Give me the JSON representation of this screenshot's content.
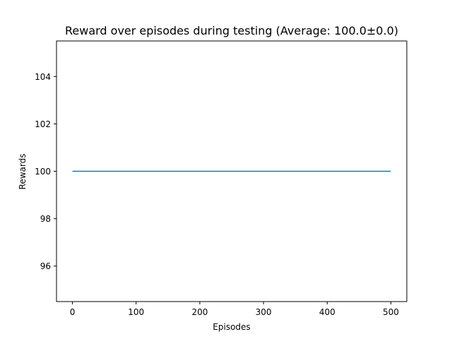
{
  "chart_data": {
    "type": "line",
    "title": "Reward over episodes during testing (Average: 100.0±0.0)",
    "xlabel": "Episodes",
    "ylabel": "Rewards",
    "xlim": [
      -25,
      525
    ],
    "ylim": [
      94.5,
      105.5
    ],
    "xticks": [
      0,
      100,
      200,
      300,
      400,
      500
    ],
    "yticks": [
      96,
      98,
      100,
      102,
      104
    ],
    "grid": false,
    "series": [
      {
        "color": "#1f77b4",
        "x": [
          0,
          500
        ],
        "y": [
          100,
          100
        ]
      }
    ]
  }
}
